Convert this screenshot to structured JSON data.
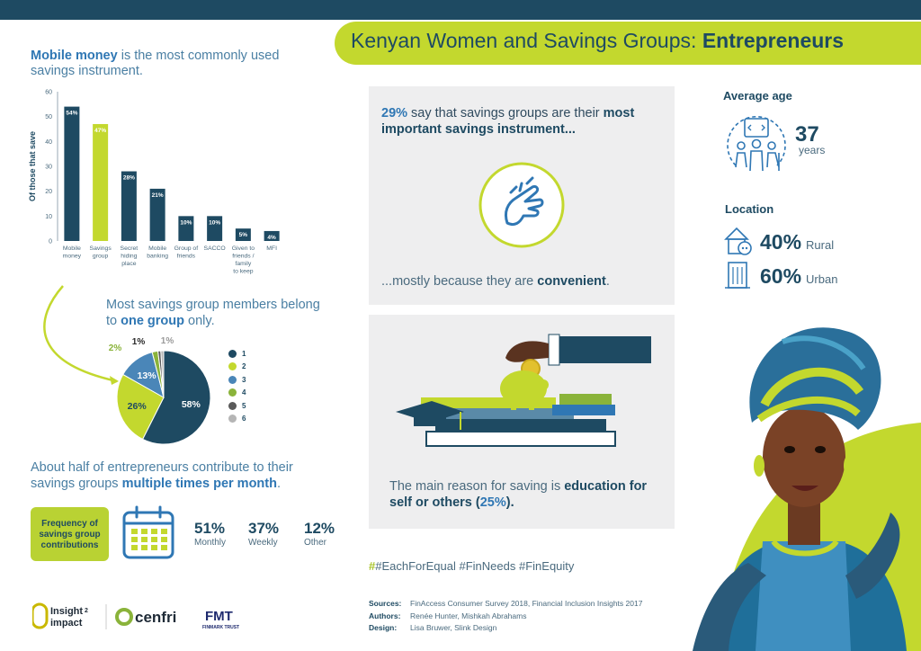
{
  "header": {
    "title_prefix": "Kenyan Women and Savings Groups: ",
    "title_bold": "Entrepreneurs"
  },
  "section1": {
    "heading_bold": "Mobile money",
    "heading_rest": " is the most commonly used savings instrument."
  },
  "section2": {
    "heading_pre": "Most savings group members belong to ",
    "heading_bold": "one group",
    "heading_post": " only."
  },
  "section3": {
    "heading_pre": "About half of entrepreneurs contribute to their savings groups ",
    "heading_bold": "multiple times per month",
    "heading_post": ".",
    "box_label": "Frequency of savings group contributions",
    "items": [
      {
        "value": "51%",
        "label": "Monthly"
      },
      {
        "value": "37%",
        "label": "Weekly"
      },
      {
        "value": "12%",
        "label": "Other"
      }
    ]
  },
  "chart_data": [
    {
      "type": "bar",
      "ylabel": "Of those that save",
      "ylim": [
        0,
        60
      ],
      "yticks": [
        0,
        10,
        20,
        30,
        40,
        50,
        60
      ],
      "categories": [
        [
          "Mobile",
          "money"
        ],
        [
          "Savings",
          "group"
        ],
        [
          "Secret",
          "hiding",
          "place"
        ],
        [
          "Mobile",
          "banking"
        ],
        [
          "Group of",
          "friends"
        ],
        [
          "SACCO"
        ],
        [
          "Given to",
          "friends /",
          "family",
          "to keep"
        ],
        [
          "MFI"
        ]
      ],
      "values": [
        54,
        47,
        28,
        21,
        10,
        10,
        5,
        4
      ],
      "data_labels": [
        "54%",
        "47%",
        "28%",
        "21%",
        "10%",
        "10%",
        "5%",
        "4%"
      ],
      "colors": [
        "#1e4a62",
        "#c3d82e",
        "#1e4a62",
        "#1e4a62",
        "#1e4a62",
        "#1e4a62",
        "#1e4a62",
        "#1e4a62"
      ]
    },
    {
      "type": "pie",
      "labels": [
        "1",
        "2",
        "3",
        "4",
        "5",
        "6"
      ],
      "values": [
        58,
        26,
        13,
        2,
        1,
        1
      ],
      "data_labels": [
        "58%",
        "26%",
        "13%",
        "2%",
        "1%",
        "1%"
      ],
      "colors": [
        "#1e4a62",
        "#c3d82e",
        "#4a86b8",
        "#8ab33a",
        "#5a5a5a",
        "#b5b5b5"
      ],
      "legend_position": "right"
    }
  ],
  "panel1": {
    "pct": "29%",
    "text_pre": " say that savings groups are their ",
    "text_bold": "most important savings instrument...",
    "bottom_pre": "...mostly because they are ",
    "bottom_bold": "convenient",
    "bottom_post": "."
  },
  "panel2": {
    "text_pre": "The main reason for saving is ",
    "text_bold": "education for self or others (",
    "text_pct": "25%",
    "text_end": ").",
    "tail": "."
  },
  "tags": [
    "#EachForEqual",
    "#FinNeeds",
    "#FinEquity"
  ],
  "sources": {
    "sources_label": "Sources:",
    "sources_text": "FinAccess Consumer Survey 2018, Financial Inclusion Insights 2017",
    "authors_label": "Authors:",
    "authors_text": "Renée Hunter, Mishkah Abrahams",
    "design_label": "Design:",
    "design_text": "Lisa Bruwer, Slink Design"
  },
  "profile": {
    "age_heading": "Average age",
    "age_value": "37",
    "age_unit": "years",
    "location_heading": "Location",
    "rural_value": "40%",
    "rural_label": "Rural",
    "urban_value": "60%",
    "urban_label": "Urban"
  },
  "logos": {
    "insight2impact_1": "Insight",
    "insight2impact_2": "impact",
    "cenfri": "cenfri",
    "fmt_initials": "FMT",
    "fmt_name": "FINMARK TRUST"
  },
  "colors": {
    "navy": "#1e4a62",
    "lime": "#c3d82e",
    "blue": "#2f77b4"
  }
}
